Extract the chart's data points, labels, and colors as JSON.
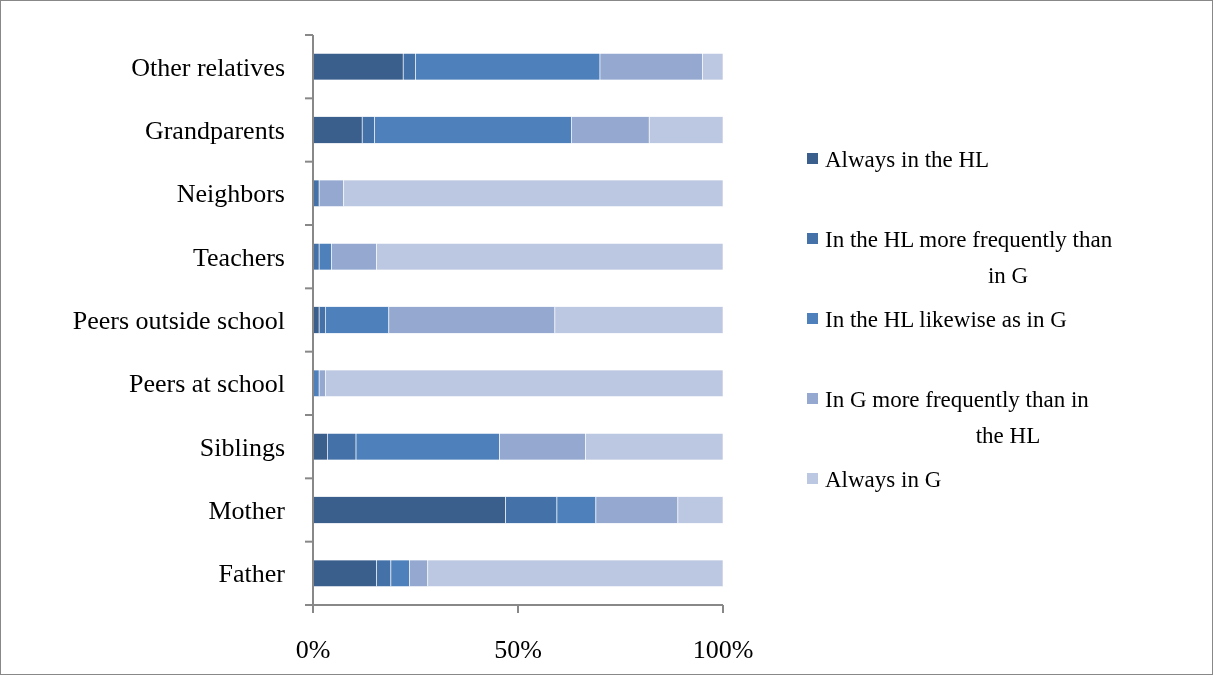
{
  "chart_data": {
    "type": "bar",
    "orientation": "horizontal",
    "stacked": true,
    "categories": [
      "Other relatives",
      "Grandparents",
      "Neighbors",
      "Teachers",
      "Peers outside school",
      "Peers at school",
      "Siblings",
      "Mother",
      "Father"
    ],
    "series": [
      {
        "name": "Always in the HL",
        "color": "#3b5f8d",
        "values": [
          22,
          12,
          0,
          0,
          1.5,
          0,
          3.5,
          47,
          15.5
        ]
      },
      {
        "name": "In the HL more frequently than in G",
        "color": "#4472a8",
        "values": [
          3,
          3,
          1.5,
          1.5,
          1.5,
          0,
          7,
          12.5,
          3.5
        ]
      },
      {
        "name": "In the HL likewise as in G",
        "color": "#4e80bc",
        "values": [
          45,
          48,
          0,
          3,
          15.5,
          1.5,
          35,
          9.5,
          4.5
        ]
      },
      {
        "name": "In G more frequently than in the HL",
        "color": "#95a9d0",
        "values": [
          25,
          19,
          6,
          11,
          40.5,
          1.5,
          21,
          20,
          4.5
        ]
      },
      {
        "name": "Always in G",
        "color": "#bcc8e1",
        "values": [
          5,
          18,
          92.5,
          84.5,
          41,
          97,
          33.5,
          11,
          72
        ]
      }
    ],
    "xlim": [
      0,
      100
    ],
    "xticks": [
      {
        "value": 0,
        "label": "0%"
      },
      {
        "value": 50,
        "label": "50%"
      },
      {
        "value": 100,
        "label": "100%"
      }
    ],
    "grid": false,
    "legend": "right"
  }
}
